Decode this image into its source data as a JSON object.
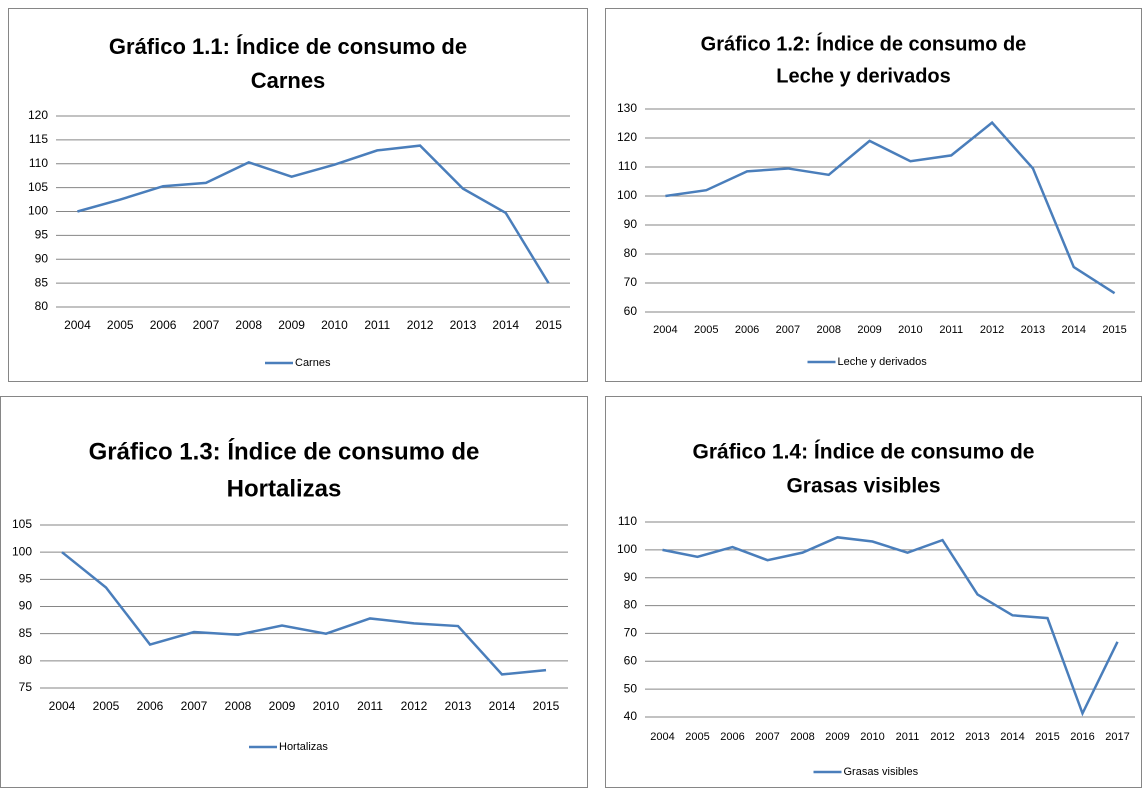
{
  "chart_data": [
    {
      "type": "line",
      "title": [
        "Gráfico 1.1: Índice de consumo de",
        "Carnes"
      ],
      "categories": [
        "2004",
        "2005",
        "2006",
        "2007",
        "2008",
        "2009",
        "2010",
        "2011",
        "2012",
        "2013",
        "2014",
        "2015"
      ],
      "series": [
        {
          "name": "Carnes",
          "color": "#4a7ebb",
          "values": [
            100,
            102.5,
            105.3,
            106,
            110.3,
            107.3,
            109.8,
            112.8,
            113.8,
            104.8,
            99.7,
            85
          ]
        }
      ],
      "ylim": [
        80,
        120
      ],
      "yticks": [
        80,
        85,
        90,
        95,
        100,
        105,
        110,
        115,
        120
      ],
      "grid": true,
      "legend": "bottom"
    },
    {
      "type": "line",
      "title": [
        "Gráfico 1.2: Índice de consumo de",
        "Leche y derivados"
      ],
      "categories": [
        "2004",
        "2005",
        "2006",
        "2007",
        "2008",
        "2009",
        "2010",
        "2011",
        "2012",
        "2013",
        "2014",
        "2015"
      ],
      "series": [
        {
          "name": "Leche y derivados",
          "color": "#4a7ebb",
          "values": [
            100,
            102,
            108.5,
            109.5,
            107.3,
            119,
            112,
            114,
            125.3,
            109.5,
            75.5,
            66.5
          ]
        }
      ],
      "ylim": [
        60,
        130
      ],
      "yticks": [
        60,
        70,
        80,
        90,
        100,
        110,
        120,
        130
      ],
      "grid": true,
      "legend": "bottom"
    },
    {
      "type": "line",
      "title": [
        "Gráfico 1.3: Índice de consumo de",
        "Hortalizas"
      ],
      "categories": [
        "2004",
        "2005",
        "2006",
        "2007",
        "2008",
        "2009",
        "2010",
        "2011",
        "2012",
        "2013",
        "2014",
        "2015"
      ],
      "series": [
        {
          "name": "Hortalizas",
          "color": "#4a7ebb",
          "values": [
            100,
            93.5,
            83,
            85.3,
            84.8,
            86.5,
            85,
            87.8,
            86.9,
            86.4,
            77.5,
            78.3
          ]
        }
      ],
      "ylim": [
        75,
        105
      ],
      "yticks": [
        75,
        80,
        85,
        90,
        95,
        100,
        105
      ],
      "grid": true,
      "legend": "bottom"
    },
    {
      "type": "line",
      "title": [
        "Gráfico 1.4: Índice de consumo de",
        "Grasas visibles"
      ],
      "categories": [
        "2004",
        "2005",
        "2006",
        "2007",
        "2008",
        "2009",
        "2010",
        "2011",
        "2012",
        "2013",
        "2014",
        "2015",
        "2016",
        "2017"
      ],
      "series": [
        {
          "name": "Grasas visibles",
          "color": "#4a7ebb",
          "values": [
            100,
            97.5,
            101,
            96.3,
            99,
            104.5,
            103,
            99,
            103.5,
            84,
            76.5,
            75.5,
            41.3,
            67
          ]
        }
      ],
      "ylim": [
        40,
        110
      ],
      "yticks": [
        40,
        50,
        60,
        70,
        80,
        90,
        100,
        110
      ],
      "grid": true,
      "legend": "bottom"
    }
  ]
}
